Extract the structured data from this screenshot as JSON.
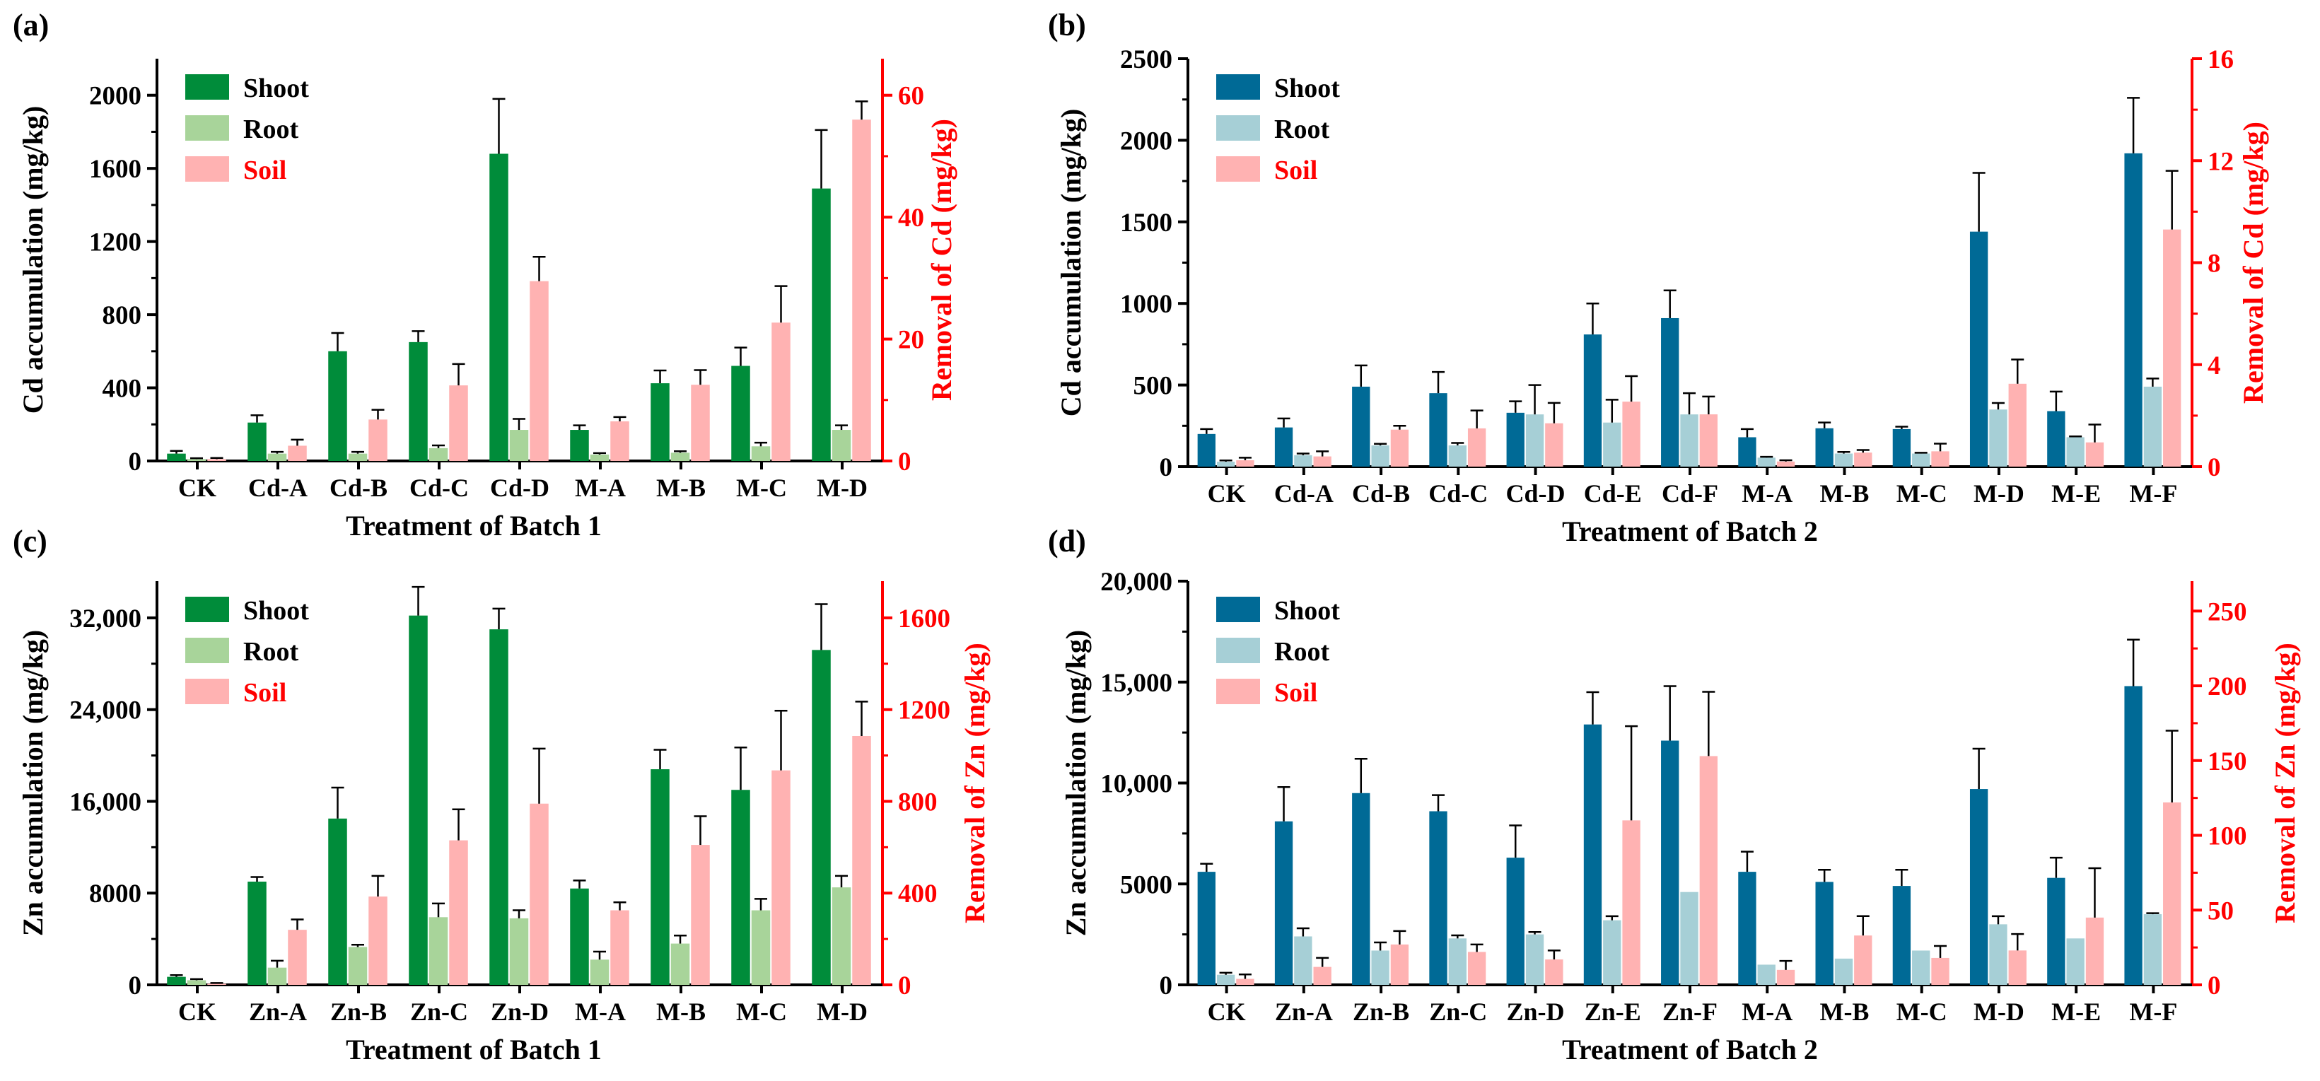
{
  "colors": {
    "axis": "#000000",
    "right_axis": "#ff0000",
    "batch1": {
      "shoot": "#008c3a",
      "root": "#a8d49a",
      "soil": "#ffb2b2"
    },
    "batch2": {
      "shoot": "#006a96",
      "root": "#a6cfd6",
      "soil": "#ffb2b2"
    }
  },
  "chart_data": [
    {
      "panel": "(a)",
      "type": "bar",
      "title": "",
      "xlabel": "Treatment of Batch 1",
      "ylabel": "Cd accumulation (mg/kg)",
      "y2label": "Removal of Cd (mg/kg)",
      "categories": [
        "CK",
        "Cd-A",
        "Cd-B",
        "Cd-C",
        "Cd-D",
        "M-A",
        "M-B",
        "M-C",
        "M-D"
      ],
      "ylim": [
        0,
        2200
      ],
      "yticks": [
        0,
        400,
        800,
        1200,
        1600,
        2000
      ],
      "ytick_labels": [
        "0",
        "400",
        "800",
        "1200",
        "1600",
        "2000"
      ],
      "y2lim": [
        0,
        66
      ],
      "y2ticks": [
        0,
        20,
        40,
        60
      ],
      "y2tick_labels": [
        "0",
        "20",
        "40",
        "60"
      ],
      "legend_position": "top-left",
      "palette": "batch1",
      "series": [
        {
          "name": "Shoot",
          "axis": "left",
          "values": [
            40,
            210,
            600,
            650,
            1680,
            170,
            425,
            520,
            1490
          ],
          "errors": [
            15,
            40,
            100,
            60,
            300,
            25,
            70,
            100,
            320
          ]
        },
        {
          "name": "Root",
          "axis": "left",
          "values": [
            10,
            40,
            40,
            70,
            170,
            35,
            45,
            80,
            170
          ],
          "errors": [
            5,
            10,
            10,
            15,
            60,
            8,
            8,
            20,
            25
          ]
        },
        {
          "name": "Soil",
          "axis": "right",
          "values": [
            0.3,
            2.5,
            6.8,
            12.4,
            29.5,
            6.5,
            12.5,
            22.7,
            56
          ],
          "errors": [
            0.2,
            1,
            1.6,
            3.5,
            4,
            0.7,
            2.4,
            6,
            3
          ]
        }
      ]
    },
    {
      "panel": "(b)",
      "type": "bar",
      "title": "",
      "xlabel": "Treatment of Batch 2",
      "ylabel": "Cd accumulation (mg/kg)",
      "y2label": "Removal of Cd (mg/kg)",
      "categories": [
        "CK",
        "Cd-A",
        "Cd-B",
        "Cd-C",
        "Cd-D",
        "Cd-E",
        "Cd-F",
        "M-A",
        "M-B",
        "M-C",
        "M-D",
        "M-E",
        "M-F"
      ],
      "ylim": [
        0,
        2500
      ],
      "yticks": [
        0,
        500,
        1000,
        1500,
        2000,
        2500
      ],
      "ytick_labels": [
        "0",
        "500",
        "1000",
        "1500",
        "2000",
        "2500"
      ],
      "y2lim": [
        0,
        16
      ],
      "y2ticks": [
        0,
        4,
        8,
        12,
        16
      ],
      "y2tick_labels": [
        "0",
        "4",
        "8",
        "12",
        "16"
      ],
      "legend_position": "top-left",
      "palette": "batch2",
      "series": [
        {
          "name": "Shoot",
          "axis": "left",
          "values": [
            200,
            240,
            490,
            450,
            330,
            810,
            910,
            180,
            235,
            230,
            1440,
            340,
            1920
          ],
          "errors": [
            30,
            55,
            130,
            130,
            70,
            190,
            170,
            50,
            35,
            15,
            360,
            120,
            340
          ]
        },
        {
          "name": "Root",
          "axis": "left",
          "values": [
            30,
            70,
            130,
            130,
            320,
            270,
            320,
            55,
            80,
            80,
            350,
            180,
            490
          ],
          "errors": [
            8,
            10,
            10,
            15,
            180,
            140,
            130,
            5,
            10,
            5,
            40,
            5,
            50
          ]
        },
        {
          "name": "Soil",
          "axis": "right",
          "values": [
            0.25,
            0.4,
            1.45,
            1.5,
            1.7,
            2.55,
            2.05,
            0.2,
            0.55,
            0.6,
            3.25,
            0.95,
            9.3
          ],
          "errors": [
            0.1,
            0.2,
            0.15,
            0.7,
            0.8,
            1,
            0.7,
            0.05,
            0.1,
            0.3,
            0.95,
            0.7,
            2.3
          ]
        }
      ]
    },
    {
      "panel": "(c)",
      "type": "bar",
      "title": "",
      "xlabel": "Treatment of Batch 1",
      "ylabel": "Zn accumulation (mg/kg)",
      "y2label": "Removal of Zn (mg/kg)",
      "categories": [
        "CK",
        "Zn-A",
        "Zn-B",
        "Zn-C",
        "Zn-D",
        "M-A",
        "M-B",
        "M-C",
        "M-D"
      ],
      "ylim": [
        0,
        35200
      ],
      "yticks": [
        0,
        8000,
        16000,
        24000,
        32000
      ],
      "ytick_labels": [
        "0",
        "8000",
        "16,000",
        "24,000",
        "32,000"
      ],
      "y2lim": [
        0,
        1760
      ],
      "y2ticks": [
        0,
        400,
        800,
        1200,
        1600
      ],
      "y2tick_labels": [
        "0",
        "400",
        "800",
        "1200",
        "1600"
      ],
      "legend_position": "top-left",
      "palette": "batch1",
      "series": [
        {
          "name": "Shoot",
          "axis": "left",
          "values": [
            700,
            9000,
            14500,
            32200,
            31000,
            8400,
            18800,
            17000,
            29200
          ],
          "errors": [
            150,
            400,
            2700,
            2500,
            1800,
            700,
            1700,
            3700,
            4000
          ]
        },
        {
          "name": "Root",
          "axis": "left",
          "values": [
            400,
            1500,
            3300,
            5900,
            5800,
            2200,
            3600,
            6500,
            8500
          ],
          "errors": [
            100,
            600,
            200,
            1200,
            700,
            700,
            700,
            1000,
            1000
          ]
        },
        {
          "name": "Soil",
          "axis": "right",
          "values": [
            5,
            240,
            385,
            630,
            790,
            325,
            610,
            935,
            1085
          ],
          "errors": [
            3,
            45,
            90,
            135,
            240,
            35,
            125,
            260,
            150
          ]
        }
      ]
    },
    {
      "panel": "(d)",
      "type": "bar",
      "title": "",
      "xlabel": "Treatment of Batch 2",
      "ylabel": "Zn accumulation (mg/kg)",
      "y2label": "Removal of Zn (mg/kg)",
      "categories": [
        "CK",
        "Zn-A",
        "Zn-B",
        "Zn-C",
        "Zn-D",
        "Zn-E",
        "Zn-F",
        "M-A",
        "M-B",
        "M-C",
        "M-D",
        "M-E",
        "M-F"
      ],
      "ylim": [
        0,
        20000
      ],
      "yticks": [
        0,
        5000,
        10000,
        15000,
        20000
      ],
      "ytick_labels": [
        "0",
        "5000",
        "10,000",
        "15,000",
        "20,000"
      ],
      "y2lim": [
        0,
        270
      ],
      "y2ticks": [
        0,
        50,
        100,
        150,
        200,
        250
      ],
      "y2tick_labels": [
        "0",
        "50",
        "100",
        "150",
        "200",
        "250"
      ],
      "legend_position": "top-left",
      "palette": "batch2",
      "series": [
        {
          "name": "Shoot",
          "axis": "left",
          "values": [
            5600,
            8100,
            9500,
            8600,
            6300,
            12900,
            12100,
            5600,
            5100,
            4900,
            9700,
            5300,
            14800
          ],
          "errors": [
            400,
            1700,
            1700,
            800,
            1600,
            1600,
            2700,
            1000,
            600,
            800,
            2000,
            1000,
            2300
          ]
        },
        {
          "name": "Root",
          "axis": "left",
          "values": [
            500,
            2400,
            1700,
            2300,
            2500,
            3200,
            4600,
            1000,
            1300,
            1700,
            3000,
            2300,
            3500
          ],
          "errors": [
            100,
            400,
            400,
            150,
            120,
            200,
            0,
            0,
            0,
            0,
            400,
            0,
            50
          ]
        },
        {
          "name": "Soil",
          "axis": "right",
          "values": [
            4,
            12,
            27,
            22,
            17,
            110,
            153,
            10,
            33,
            18,
            23,
            45,
            122
          ],
          "errors": [
            3,
            6,
            9,
            5,
            6,
            63,
            43,
            6,
            13,
            8,
            11,
            33,
            48
          ]
        }
      ]
    }
  ]
}
